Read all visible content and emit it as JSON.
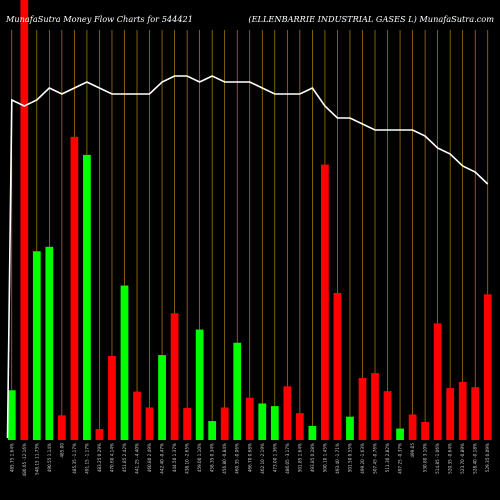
{
  "header": {
    "left": "MunafaSutra  Money Flow  Charts for 544421",
    "right": "(ELLENBARRIE INDUSTRIAL  GASES L) MunafaSutra.com"
  },
  "colors": {
    "background": "#000000",
    "up": "#00ff00",
    "down": "#ff0000",
    "price_line": "#ffffff",
    "grid": "#b8860b"
  },
  "chart_data": {
    "type": "bar",
    "grid": "vertical",
    "legend": "none",
    "ylim": [
      0,
      100
    ],
    "price_ylim": [
      0,
      100
    ],
    "categories": [
      "485.75 1.64%",
      "480.65 -12.16%",
      "548.15 11.73%",
      "490.55 1.14%",
      "485.00",
      "485.35 -1.17%",
      "491.15 -1.17%",
      "483.25 0.29%",
      "470.60 4.14%",
      "451.85 2.42%",
      "441.25 -4.40%",
      "460.80 2.49%",
      "442.40 -0.47%",
      "444.50 1.37%",
      "438.10 -2.65%",
      "459.00 1.10%",
      "458.35 0.34%",
      "456.80 -0.84%",
      "460.35 -0.06%",
      "466.70 0.68%",
      "462.10 -2.19%",
      "473.00 1.36%",
      "486.05 -3.17%",
      "501.85 1.64%",
      "493.85 0.28%",
      "500.10 1.45%",
      "493.40 -1.71%",
      "501.50 0.55%",
      "499.20 -1.63%",
      "507.45 -0.76%",
      "511.30 2.82%",
      "497.25 -0.37%",
      "499.05",
      "530.80 3.10%",
      "514.85 -1.06%",
      "520.35 -0.64%",
      "523.70 -0.89%",
      "528.40 -0.18%",
      "529.35 0.09%"
    ],
    "colors_by_bar": [
      "up",
      "down",
      "up",
      "up",
      "down",
      "down",
      "up",
      "down",
      "down",
      "up",
      "down",
      "down",
      "up",
      "down",
      "down",
      "up",
      "up",
      "down",
      "up",
      "down",
      "up",
      "up",
      "down",
      "down",
      "up",
      "down",
      "down",
      "up",
      "down",
      "down",
      "red",
      "up",
      "down",
      "down",
      "down",
      "down",
      "down",
      "down",
      "down"
    ],
    "values": [
      11.3,
      100,
      42.9,
      43.9,
      5.6,
      68.9,
      64.8,
      2.5,
      19.1,
      35.1,
      11.0,
      7.4,
      19.3,
      28.8,
      7.3,
      25.1,
      4.3,
      7.4,
      22.1,
      9.6,
      8.3,
      7.7,
      12.2,
      6.1,
      3.2,
      62.6,
      33.4,
      5.3,
      14.1,
      15.2,
      11.1,
      2.6,
      5.8,
      4.1,
      26.5,
      11.8,
      13.2,
      12.0,
      33.1
    ],
    "price_line": [
      85,
      84,
      85,
      87,
      86,
      87,
      88,
      87,
      86,
      86,
      86,
      86,
      88,
      89,
      89,
      88,
      89,
      88,
      88,
      88,
      87,
      86,
      86,
      86,
      87,
      84,
      82,
      82,
      81,
      80,
      80,
      80,
      80,
      79,
      77,
      76,
      74,
      73,
      71
    ]
  }
}
